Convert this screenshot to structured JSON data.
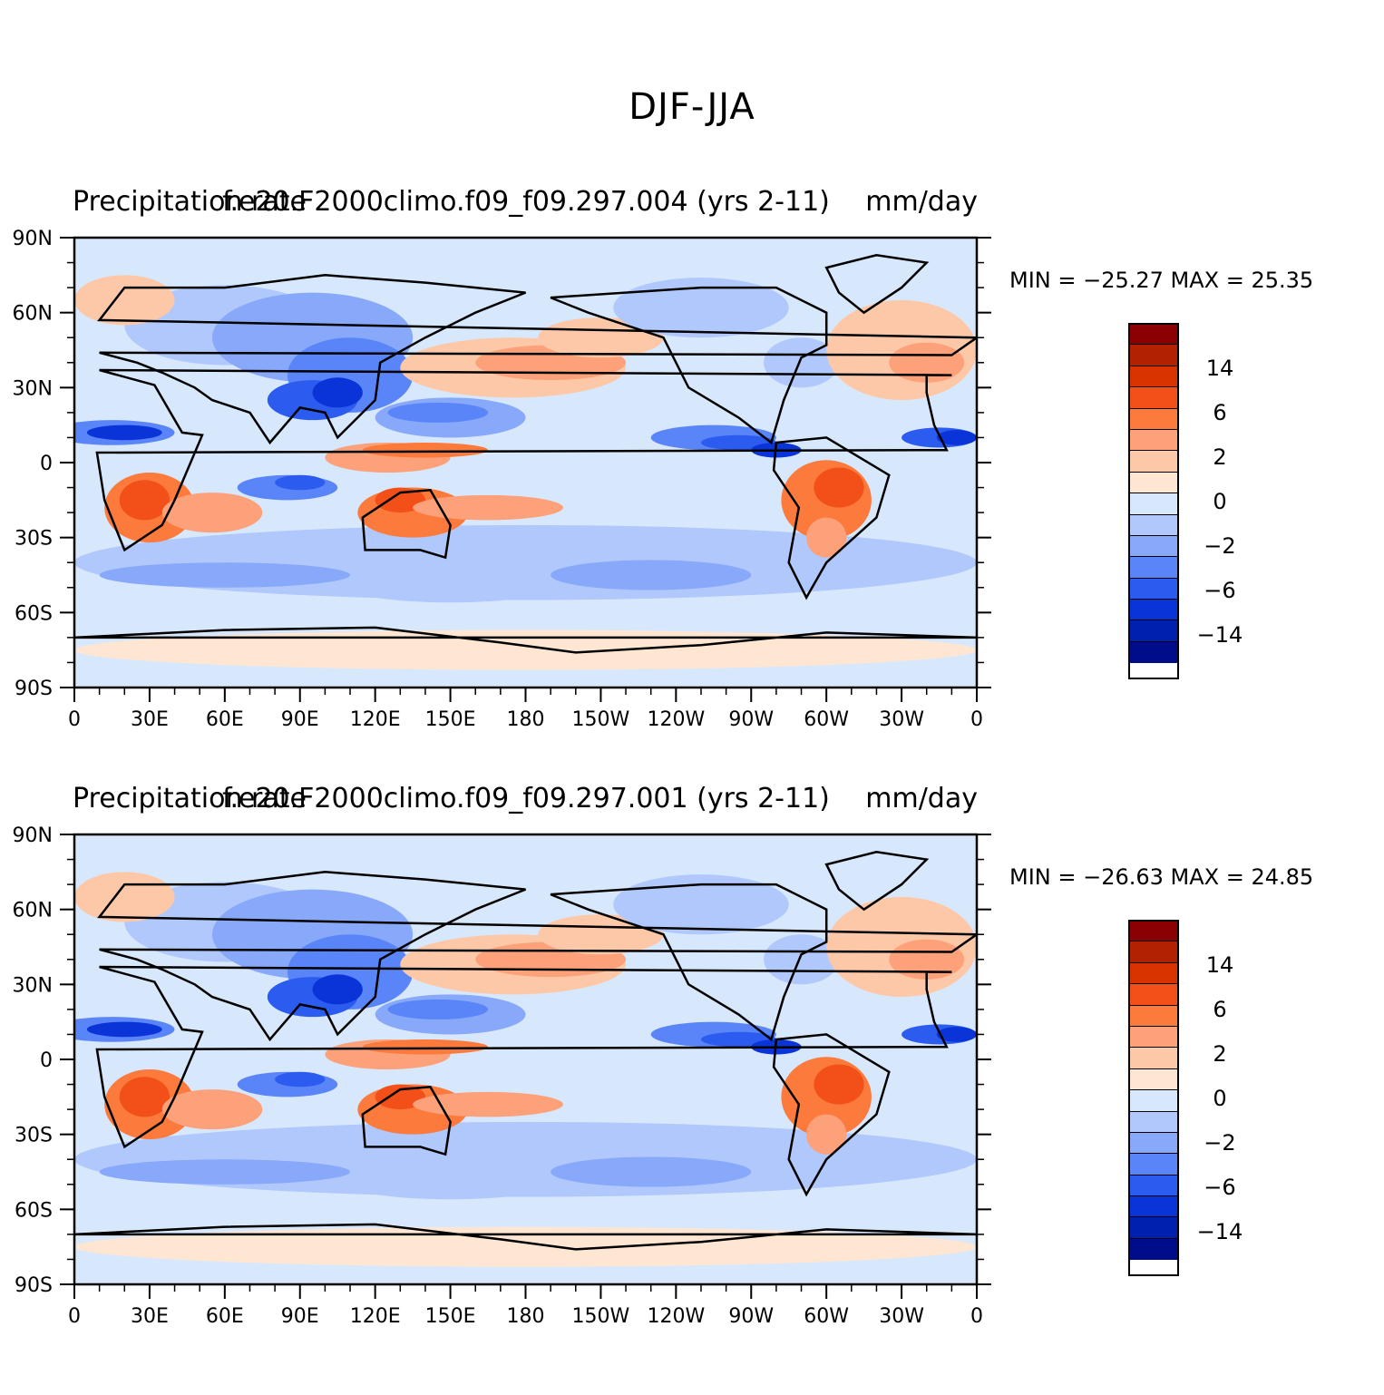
{
  "figure": {
    "title": "DJF-JJA"
  },
  "colorbar": {
    "colors": [
      "#8b0000",
      "#b22200",
      "#d93300",
      "#f25018",
      "#fb7a3c",
      "#fca17a",
      "#fdc8a8",
      "#fee6d3",
      "#d8e8fc",
      "#b0c8fc",
      "#88a8fa",
      "#5a85f8",
      "#2c5bf0",
      "#0a34d8",
      "#0020b0",
      "#000d8a"
    ],
    "labels": [
      "14",
      "6",
      "2",
      "0",
      "-2",
      "-6",
      "-14"
    ]
  },
  "axes": {
    "lat_ticks": [
      "90N",
      "60N",
      "30N",
      "0",
      "30S",
      "60S",
      "90S"
    ],
    "lon_ticks": [
      "0",
      "30E",
      "60E",
      "90E",
      "120E",
      "150E",
      "180",
      "150W",
      "120W",
      "90W",
      "60W",
      "30W",
      "0"
    ]
  },
  "panels": [
    {
      "left_title": "Precipitation rate",
      "center_title": "f.e20.F2000climo.f09_f09.297.004 (yrs 2-11)",
      "right_title": "mm/day",
      "min_max": "MIN = −25.27  MAX =   25.35"
    },
    {
      "left_title": "Precipitation rate",
      "center_title": "f.e20.F2000climo.f09_f09.297.001 (yrs 2-11)",
      "right_title": "mm/day",
      "min_max": "MIN = −26.63  MAX =   24.85"
    }
  ]
}
